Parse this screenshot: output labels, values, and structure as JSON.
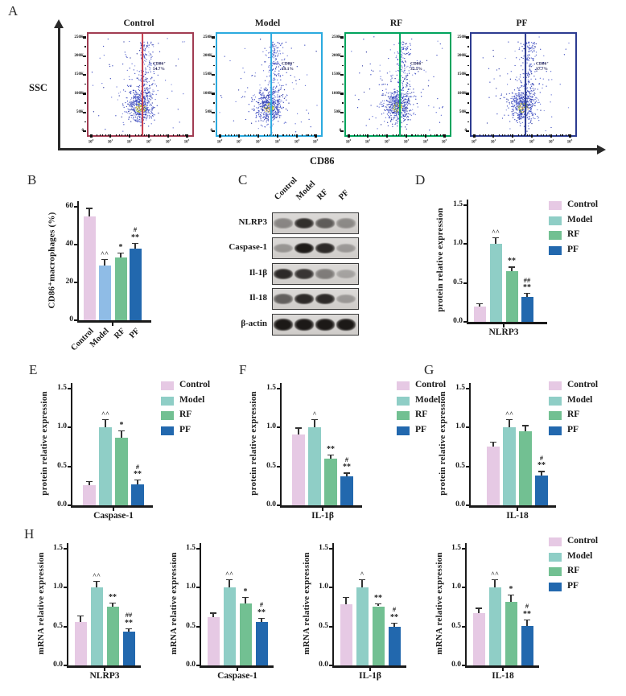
{
  "panel_letters": [
    "A",
    "B",
    "C",
    "D",
    "E",
    "F",
    "G",
    "H"
  ],
  "colors": {
    "control": "#E6C9E4",
    "model_teal": "#8FCEC6",
    "model_lightblue": "#8FBCE6",
    "rf_green": "#72C092",
    "pf_blue": "#2268AE",
    "axis": "#2a2a2a"
  },
  "panelA": {
    "label": "A",
    "y_axis_label": "SSC",
    "x_axis_label": "CD86",
    "y_ticks": [
      "250K",
      "200K",
      "150K",
      "100K",
      "50K",
      "0"
    ],
    "x_tick_exponents": [
      "0",
      "1",
      "2",
      "3",
      "4",
      "5"
    ],
    "plots": [
      {
        "title": "Control",
        "border_color": "#A13C52",
        "gate_color": "#C53B4B",
        "marker_label": "CD86⁺",
        "percent": "54.7%"
      },
      {
        "title": "Model",
        "border_color": "#2BAADF",
        "gate_color": "#2BAADF",
        "marker_label": "CD86⁺",
        "percent": "29.1%"
      },
      {
        "title": "RF",
        "border_color": "#00A45D",
        "gate_color": "#00A45D",
        "marker_label": "CD86⁺",
        "percent": "32.5%"
      },
      {
        "title": "PF",
        "border_color": "#2C3B90",
        "gate_color": "#2C3B90",
        "marker_label": "CD86⁺",
        "percent": "37.7%"
      }
    ]
  },
  "panelC": {
    "label": "C",
    "lanes": [
      "Control",
      "Model",
      "RF",
      "PF"
    ],
    "rows": [
      {
        "label": "NLRP3",
        "bands": [
          0.4,
          0.85,
          0.62,
          0.38
        ]
      },
      {
        "label": "Caspase-1",
        "bands": [
          0.32,
          0.96,
          0.88,
          0.3
        ]
      },
      {
        "label": "Il-1β",
        "bands": [
          0.88,
          0.82,
          0.45,
          0.25
        ]
      },
      {
        "label": "Il-18",
        "bands": [
          0.6,
          0.88,
          0.88,
          0.3
        ]
      },
      {
        "label": "β-actin",
        "bands": [
          0.97,
          0.97,
          0.97,
          0.97
        ]
      }
    ]
  },
  "legend_items": [
    "Control",
    "Model",
    "RF",
    "PF"
  ],
  "chart_data": [
    {
      "id": "B",
      "panel": "B",
      "type": "bar",
      "ylabel": "CD86⁺macrophages (%)",
      "xlabel": "",
      "categories": [
        "Control",
        "Model",
        "RF",
        "PF"
      ],
      "values": [
        55,
        29,
        33,
        38
      ],
      "errors": [
        4,
        3,
        2.5,
        2.5
      ],
      "annotations": [
        [],
        [
          "^^"
        ],
        [
          "*"
        ],
        [
          "#",
          "**"
        ]
      ],
      "ylim": [
        0,
        60
      ],
      "yticks": [
        0,
        20,
        40,
        60
      ],
      "colors": [
        "#E6C9E4",
        "#8FBCE6",
        "#72C092",
        "#2268AE"
      ],
      "rotated_category_labels": true,
      "legend": false
    },
    {
      "id": "D",
      "panel": "D",
      "type": "bar",
      "ylabel": "protein relative expression",
      "xlabel": "NLRP3",
      "categories": [
        "Control",
        "Model",
        "RF",
        "PF"
      ],
      "values": [
        0.2,
        1.0,
        0.65,
        0.32
      ],
      "errors": [
        0.03,
        0.08,
        0.05,
        0.04
      ],
      "annotations": [
        [],
        [
          "^^"
        ],
        [
          "**"
        ],
        [
          "##",
          "**"
        ]
      ],
      "ylim": [
        0,
        1.5
      ],
      "yticks": [
        0,
        0.5,
        1.0,
        1.5
      ],
      "colors": [
        "#E6C9E4",
        "#8FCEC6",
        "#72C092",
        "#2268AE"
      ],
      "legend": true
    },
    {
      "id": "E",
      "panel": "E",
      "type": "bar",
      "ylabel": "protein relative expression",
      "xlabel": "Caspase-1",
      "categories": [
        "Control",
        "Model",
        "RF",
        "PF"
      ],
      "values": [
        0.26,
        1.0,
        0.87,
        0.27
      ],
      "errors": [
        0.04,
        0.1,
        0.08,
        0.05
      ],
      "annotations": [
        [],
        [
          "^^"
        ],
        [
          "*"
        ],
        [
          "#",
          "**"
        ]
      ],
      "ylim": [
        0,
        1.5
      ],
      "yticks": [
        0,
        0.5,
        1.0,
        1.5
      ],
      "colors": [
        "#E6C9E4",
        "#8FCEC6",
        "#72C092",
        "#2268AE"
      ],
      "legend": true
    },
    {
      "id": "F",
      "panel": "F",
      "type": "bar",
      "ylabel": "protein relative expression",
      "xlabel": "IL-1β",
      "categories": [
        "Control",
        "Model",
        "RF",
        "PF"
      ],
      "values": [
        0.91,
        1.0,
        0.6,
        0.37
      ],
      "errors": [
        0.08,
        0.1,
        0.04,
        0.04
      ],
      "annotations": [
        [],
        [
          "^"
        ],
        [
          "**"
        ],
        [
          "#",
          "**"
        ]
      ],
      "ylim": [
        0,
        1.5
      ],
      "yticks": [
        0,
        0.5,
        1.0,
        1.5
      ],
      "colors": [
        "#E6C9E4",
        "#8FCEC6",
        "#72C092",
        "#2268AE"
      ],
      "legend": true
    },
    {
      "id": "G",
      "panel": "G",
      "type": "bar",
      "ylabel": "protein relative expression",
      "xlabel": "IL-18",
      "categories": [
        "Control",
        "Model",
        "RF",
        "PF"
      ],
      "values": [
        0.76,
        1.0,
        0.95,
        0.38
      ],
      "errors": [
        0.05,
        0.1,
        0.07,
        0.05
      ],
      "annotations": [
        [],
        [
          "^^"
        ],
        [],
        [
          "#",
          "**"
        ]
      ],
      "ylim": [
        0,
        1.5
      ],
      "yticks": [
        0,
        0.5,
        1.0,
        1.5
      ],
      "colors": [
        "#E6C9E4",
        "#8FCEC6",
        "#72C092",
        "#2268AE"
      ],
      "legend": true
    },
    {
      "id": "H1",
      "panel": "H",
      "type": "bar",
      "ylabel": "mRNA relative expression",
      "xlabel": "NLRP3",
      "categories": [
        "Control",
        "Model",
        "RF",
        "PF"
      ],
      "values": [
        0.56,
        1.0,
        0.75,
        0.43
      ],
      "errors": [
        0.07,
        0.08,
        0.05,
        0.04
      ],
      "annotations": [
        [],
        [
          "^^"
        ],
        [
          "**"
        ],
        [
          "##",
          "**"
        ]
      ],
      "ylim": [
        0,
        1.5
      ],
      "yticks": [
        0,
        0.5,
        1.0,
        1.5
      ],
      "colors": [
        "#E6C9E4",
        "#8FCEC6",
        "#72C092",
        "#2268AE"
      ],
      "legend": false
    },
    {
      "id": "H2",
      "panel": "H",
      "type": "bar",
      "ylabel": "mRNA relative expression",
      "xlabel": "Caspase-1",
      "categories": [
        "Control",
        "Model",
        "RF",
        "PF"
      ],
      "values": [
        0.62,
        1.0,
        0.8,
        0.56
      ],
      "errors": [
        0.05,
        0.1,
        0.07,
        0.04
      ],
      "annotations": [
        [],
        [
          "^^"
        ],
        [
          "*"
        ],
        [
          "#",
          "**"
        ]
      ],
      "ylim": [
        0,
        1.5
      ],
      "yticks": [
        0,
        0.5,
        1.0,
        1.5
      ],
      "colors": [
        "#E6C9E4",
        "#8FCEC6",
        "#72C092",
        "#2268AE"
      ],
      "legend": false
    },
    {
      "id": "H3",
      "panel": "H",
      "type": "bar",
      "ylabel": "mRNA relative expression",
      "xlabel": "IL-1β",
      "categories": [
        "Control",
        "Model",
        "RF",
        "PF"
      ],
      "values": [
        0.79,
        1.0,
        0.76,
        0.5
      ],
      "errors": [
        0.08,
        0.1,
        0.03,
        0.04
      ],
      "annotations": [
        [],
        [
          "^"
        ],
        [
          "**"
        ],
        [
          "#",
          "**"
        ]
      ],
      "ylim": [
        0,
        1.5
      ],
      "yticks": [
        0,
        0.5,
        1.0,
        1.5
      ],
      "colors": [
        "#E6C9E4",
        "#8FCEC6",
        "#72C092",
        "#2268AE"
      ],
      "legend": false
    },
    {
      "id": "H4",
      "panel": "H",
      "type": "bar",
      "ylabel": "mRNA relative expression",
      "xlabel": "IL-18",
      "categories": [
        "Control",
        "Model",
        "RF",
        "PF"
      ],
      "values": [
        0.67,
        1.0,
        0.82,
        0.51
      ],
      "errors": [
        0.06,
        0.1,
        0.08,
        0.07
      ],
      "annotations": [
        [],
        [
          "^^"
        ],
        [
          "*"
        ],
        [
          "#",
          "**"
        ]
      ],
      "ylim": [
        0,
        1.5
      ],
      "yticks": [
        0,
        0.5,
        1.0,
        1.5
      ],
      "colors": [
        "#E6C9E4",
        "#8FCEC6",
        "#72C092",
        "#2268AE"
      ],
      "legend": true
    }
  ]
}
